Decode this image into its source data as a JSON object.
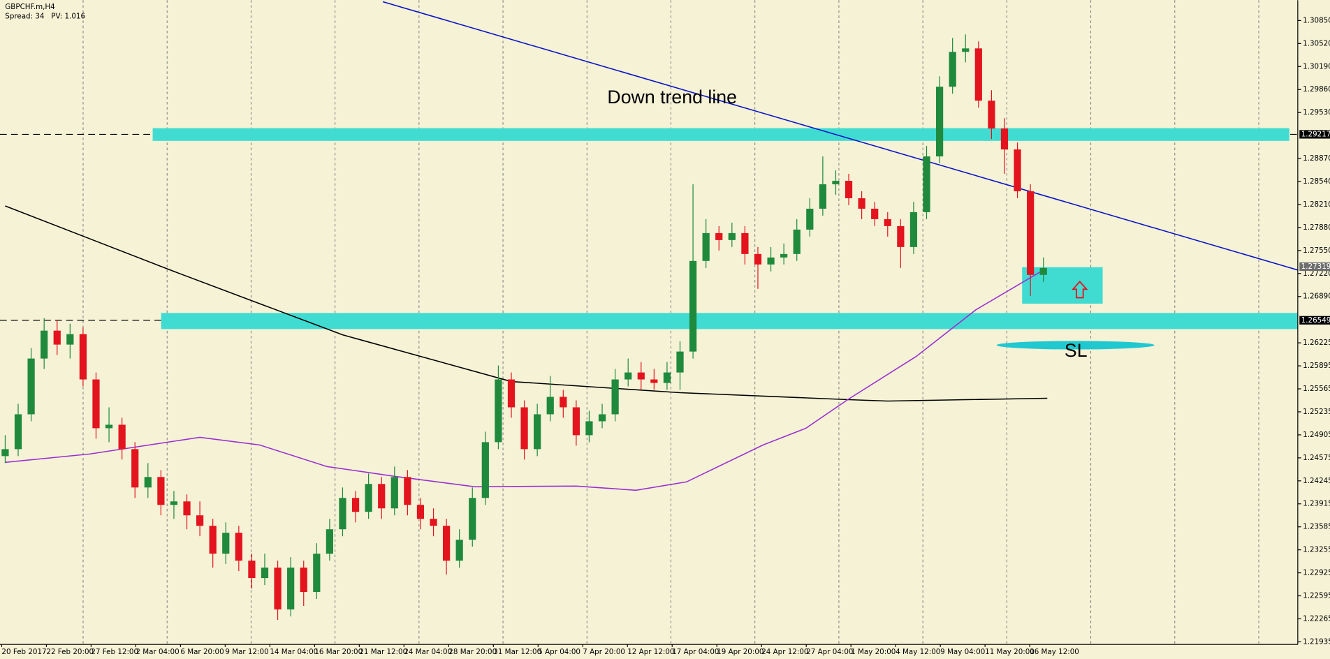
{
  "chart_data": {
    "type": "candlestick",
    "symbol_label": "GBPCHF.m,H4",
    "info_label": "Spread: 34   PV: 1.016",
    "annotations": [
      "Down trend line",
      "SL"
    ],
    "up_color": "#1f8a3c",
    "down_color": "#e3141e",
    "grid": true,
    "xlim": [
      -0.4,
      99.6
    ],
    "ylim": [
      1.21898,
      1.31142
    ],
    "yticks": [
      {
        "value": 1.3085,
        "label": "1.30850"
      },
      {
        "value": 1.3052,
        "label": "1.30520"
      },
      {
        "value": 1.3019,
        "label": "1.30190"
      },
      {
        "value": 1.2986,
        "label": "1.29860"
      },
      {
        "value": 1.2953,
        "label": "1.29530"
      },
      {
        "value": 1.2887,
        "label": "1.28870"
      },
      {
        "value": 1.2854,
        "label": "1.28540"
      },
      {
        "value": 1.2821,
        "label": "1.28210"
      },
      {
        "value": 1.2788,
        "label": "1.27880"
      },
      {
        "value": 1.2755,
        "label": "1.27550"
      },
      {
        "value": 1.2722,
        "label": "1.27220"
      },
      {
        "value": 1.2689,
        "label": "1.26890"
      },
      1.26225,
      1.25895,
      1.25565,
      1.25235,
      1.24905,
      1.24575,
      1.24245,
      1.23915,
      1.23585,
      1.23255,
      1.22925,
      1.22595,
      1.22265,
      1.21935
    ],
    "x_tick_labels": [
      "20 Feb 2017",
      "22 Feb 20:00",
      "27 Feb 12:00",
      "2 Mar 04:00",
      "6 Mar 20:00",
      "9 Mar 12:00",
      "14 Mar 04:00",
      "16 Mar 20:00",
      "21 Mar 12:00",
      "24 Mar 04:00",
      "28 Mar 20:00",
      "31 Mar 12:00",
      "5 Apr 04:00",
      "7 Apr 20:00",
      "12 Apr 12:00",
      "17 Apr 04:00",
      "19 Apr 20:00",
      "24 Apr 12:00",
      "27 Apr 04:00",
      "1 May 20:00",
      "4 May 12:00",
      "9 May 04:00",
      "11 May 20:00",
      "16 May 12:00"
    ],
    "levels": [
      1.29217,
      1.26549
    ],
    "current_price": 1.27319,
    "ohlc": [
      [
        1.246,
        1.249,
        1.245,
        1.247
      ],
      [
        1.247,
        1.2535,
        1.246,
        1.252
      ],
      [
        1.252,
        1.2615,
        1.251,
        1.26
      ],
      [
        1.26,
        1.2658,
        1.2585,
        1.264
      ],
      [
        1.264,
        1.2655,
        1.2605,
        1.262
      ],
      [
        1.262,
        1.265,
        1.26,
        1.2635
      ],
      [
        1.2635,
        1.2645,
        1.256,
        1.257
      ],
      [
        1.257,
        1.258,
        1.2485,
        1.25
      ],
      [
        1.25,
        1.253,
        1.248,
        1.2505
      ],
      [
        1.2505,
        1.2515,
        1.2455,
        1.247
      ],
      [
        1.247,
        1.248,
        1.24,
        1.2415
      ],
      [
        1.2415,
        1.245,
        1.24,
        1.243
      ],
      [
        1.243,
        1.244,
        1.2375,
        1.239
      ],
      [
        1.239,
        1.241,
        1.237,
        1.2395
      ],
      [
        1.2395,
        1.2405,
        1.2355,
        1.2375
      ],
      [
        1.2375,
        1.2395,
        1.2345,
        1.236
      ],
      [
        1.236,
        1.237,
        1.23,
        1.232
      ],
      [
        1.232,
        1.2365,
        1.2305,
        1.235
      ],
      [
        1.235,
        1.236,
        1.2295,
        1.231
      ],
      [
        1.231,
        1.232,
        1.227,
        1.2285
      ],
      [
        1.2285,
        1.232,
        1.2275,
        1.23
      ],
      [
        1.23,
        1.231,
        1.2225,
        1.224
      ],
      [
        1.224,
        1.2315,
        1.223,
        1.23
      ],
      [
        1.23,
        1.231,
        1.2245,
        1.2265
      ],
      [
        1.2265,
        1.2335,
        1.2255,
        1.232
      ],
      [
        1.232,
        1.237,
        1.231,
        1.2355
      ],
      [
        1.2355,
        1.2415,
        1.2345,
        1.24
      ],
      [
        1.24,
        1.241,
        1.2365,
        1.238
      ],
      [
        1.238,
        1.2435,
        1.237,
        1.242
      ],
      [
        1.242,
        1.243,
        1.237,
        1.2385
      ],
      [
        1.2385,
        1.2445,
        1.2375,
        1.243
      ],
      [
        1.243,
        1.244,
        1.2375,
        1.239
      ],
      [
        1.239,
        1.24,
        1.2355,
        1.237
      ],
      [
        1.237,
        1.2385,
        1.2345,
        1.236
      ],
      [
        1.236,
        1.237,
        1.229,
        1.231
      ],
      [
        1.231,
        1.2355,
        1.23,
        1.234
      ],
      [
        1.234,
        1.2415,
        1.233,
        1.24
      ],
      [
        1.24,
        1.2495,
        1.239,
        1.248
      ],
      [
        1.248,
        1.259,
        1.247,
        1.257
      ],
      [
        1.257,
        1.258,
        1.2515,
        1.253
      ],
      [
        1.253,
        1.254,
        1.2455,
        1.247
      ],
      [
        1.247,
        1.2535,
        1.246,
        1.252
      ],
      [
        1.252,
        1.2575,
        1.251,
        1.2545
      ],
      [
        1.2545,
        1.2555,
        1.2515,
        1.253
      ],
      [
        1.253,
        1.254,
        1.2475,
        1.249
      ],
      [
        1.249,
        1.2525,
        1.248,
        1.251
      ],
      [
        1.251,
        1.2535,
        1.25,
        1.252
      ],
      [
        1.252,
        1.2585,
        1.251,
        1.257
      ],
      [
        1.257,
        1.26,
        1.256,
        1.258
      ],
      [
        1.258,
        1.2595,
        1.2555,
        1.257
      ],
      [
        1.257,
        1.2585,
        1.2555,
        1.2565
      ],
      [
        1.2565,
        1.2595,
        1.2555,
        1.258
      ],
      [
        1.258,
        1.2625,
        1.2555,
        1.261
      ],
      [
        1.261,
        1.285,
        1.26,
        1.274
      ],
      [
        1.274,
        1.28,
        1.273,
        1.278
      ],
      [
        1.278,
        1.279,
        1.2755,
        1.277
      ],
      [
        1.277,
        1.2795,
        1.276,
        1.278
      ],
      [
        1.278,
        1.279,
        1.2735,
        1.275
      ],
      [
        1.275,
        1.276,
        1.27,
        1.2735
      ],
      [
        1.2735,
        1.276,
        1.2725,
        1.2745
      ],
      [
        1.2745,
        1.2765,
        1.2735,
        1.275
      ],
      [
        1.275,
        1.28,
        1.274,
        1.2785
      ],
      [
        1.2785,
        1.283,
        1.2775,
        1.2815
      ],
      [
        1.2815,
        1.289,
        1.2805,
        1.285
      ],
      [
        1.285,
        1.287,
        1.2835,
        1.2855
      ],
      [
        1.2855,
        1.2865,
        1.282,
        1.283
      ],
      [
        1.283,
        1.284,
        1.28,
        1.2815
      ],
      [
        1.2815,
        1.2825,
        1.279,
        1.28
      ],
      [
        1.28,
        1.281,
        1.2775,
        1.279
      ],
      [
        1.279,
        1.28,
        1.273,
        1.276
      ],
      [
        1.276,
        1.2825,
        1.275,
        1.281
      ],
      [
        1.281,
        1.2905,
        1.28,
        1.289
      ],
      [
        1.289,
        1.3005,
        1.288,
        1.299
      ],
      [
        1.299,
        1.306,
        1.298,
        1.304
      ],
      [
        1.304,
        1.3065,
        1.3025,
        1.3045
      ],
      [
        1.3045,
        1.3055,
        1.296,
        1.297
      ],
      [
        1.297,
        1.2985,
        1.2915,
        1.293
      ],
      [
        1.293,
        1.2945,
        1.2865,
        1.29
      ],
      [
        1.29,
        1.291,
        1.283,
        1.284
      ],
      [
        1.284,
        1.285,
        1.269,
        1.272
      ],
      [
        1.272,
        1.2745,
        1.271,
        1.273
      ]
    ],
    "overlays": [
      {
        "color": "#000000",
        "x": [
          0,
          13,
          26,
          39,
          52,
          65,
          68,
          80.3
        ],
        "values": [
          1.2819,
          1.2725,
          1.2634,
          1.2567,
          1.2551,
          1.2541,
          1.2539,
          1.2543
        ]
      },
      {
        "color": "#9b30d0",
        "x": [
          0,
          6.5,
          15,
          19.6,
          24.8,
          30,
          36.2,
          44,
          48.6,
          52.5,
          58.4,
          61.7,
          65,
          70.2,
          74.8,
          80
        ],
        "values": [
          1.2451,
          1.2463,
          1.2487,
          1.2476,
          1.2445,
          1.2431,
          1.2416,
          1.2417,
          1.2411,
          1.2423,
          1.2476,
          1.25,
          1.2542,
          1.2603,
          1.267,
          1.2727
        ]
      },
      {
        "color": "#0a14c8",
        "x": [
          29.1,
          99.6
        ],
        "values": [
          1.3112,
          1.2727
        ]
      }
    ]
  }
}
